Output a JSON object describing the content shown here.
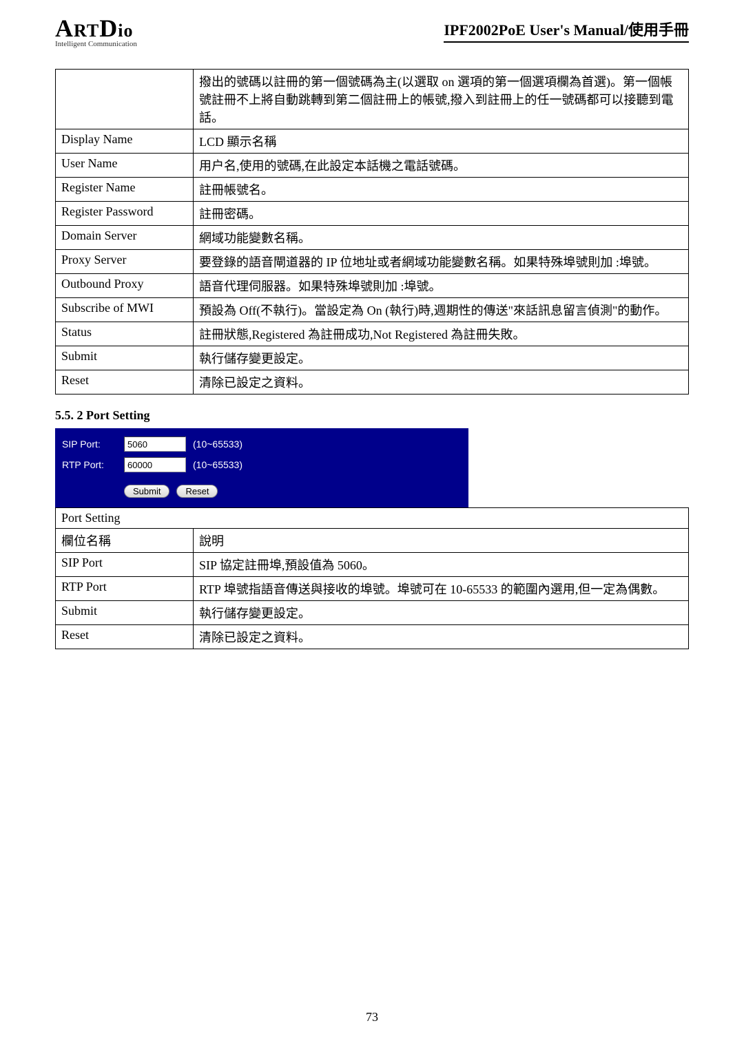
{
  "header": {
    "logo_main_a": "A",
    "logo_main_rt": "RT",
    "logo_main_d": "D",
    "logo_main_io": "io",
    "logo_sub": "Intelligent Communication",
    "doc_title": "IPF2002PoE User's Manual/使用手冊"
  },
  "table1": {
    "row0_desc": "撥出的號碼以註冊的第一個號碼為主(以選取 on 選項的第一個選項欄為首選)。第一個帳號註冊不上將自動跳轉到第二個註冊上的帳號,撥入到註冊上的任一號碼都可以接聽到電話。",
    "rows": [
      {
        "label": "Display Name",
        "desc": "LCD 顯示名稱"
      },
      {
        "label": "User Name",
        "desc": "用户名,使用的號碼,在此設定本話機之電話號碼。"
      },
      {
        "label": "Register Name",
        "desc": "註冊帳號名。"
      },
      {
        "label": "Register Password",
        "desc": "註冊密碼。"
      },
      {
        "label": "Domain Server",
        "desc": "網域功能變數名稱。"
      },
      {
        "label": "Proxy Server",
        "desc": "要登錄的語音閘道器的 IP 位地址或者網域功能變數名稱。如果特殊埠號則加 :埠號。"
      },
      {
        "label": "Outbound Proxy",
        "desc": "語音代理伺服器。如果特殊埠號則加 :埠號。"
      },
      {
        "label": "Subscribe of MWI",
        "desc": "預設為 Off(不執行)。當設定為 On (執行)時,週期性的傳送\"來話訊息留言偵測\"的動作。"
      },
      {
        "label": "Status",
        "desc": "註冊狀態,Registered 為註冊成功,Not Registered 為註冊失敗。"
      },
      {
        "label": "Submit",
        "desc": "執行儲存變更設定。"
      },
      {
        "label": "Reset",
        "desc": "清除已設定之資料。"
      }
    ]
  },
  "section552": "5.5. 2 Port Setting",
  "port_form": {
    "sip_label": "SIP Port:",
    "sip_value": "5060",
    "sip_hint": "(10~65533)",
    "rtp_label": "RTP Port:",
    "rtp_value": "60000",
    "rtp_hint": "(10~65533)",
    "submit": "Submit",
    "reset": "Reset",
    "bg_color": "#00008b",
    "text_color": "#ffffff",
    "input_bg": "#ffffff"
  },
  "table2": {
    "header_label": "Port Setting",
    "col1": "欄位名稱",
    "col2": "說明",
    "rows": [
      {
        "label": "SIP Port",
        "desc": "SIP 協定註冊埠,預設值為 5060。"
      },
      {
        "label": "RTP Port",
        "desc": "RTP 埠號指語音傳送與接收的埠號。埠號可在 10-65533 的範圍內選用,但一定為偶數。"
      },
      {
        "label": "Submit",
        "desc": "執行儲存變更設定。"
      },
      {
        "label": "Reset",
        "desc": "清除已設定之資料。"
      }
    ]
  },
  "page_number": "73"
}
